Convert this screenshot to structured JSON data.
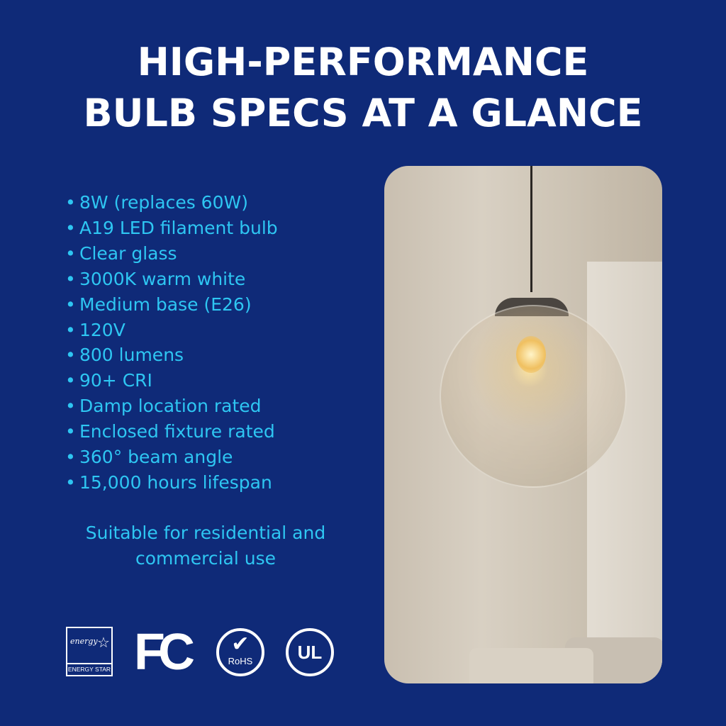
{
  "title": {
    "line1": "HIGH-PERFORMANCE",
    "line2": "BULB SPECS AT A GLANCE"
  },
  "specs": [
    "8W (replaces 60W)",
    "A19 LED filament bulb",
    "Clear glass",
    "3000K warm white",
    "Medium base (E26)",
    "120V",
    "800 lumens",
    "90+ CRI",
    "Damp location rated",
    "Enclosed fixture rated",
    "360° beam angle",
    "15,000 hours lifespan"
  ],
  "bullet": "•",
  "tagline": "Suitable for residential and commercial use",
  "certifications": {
    "energy_star": {
      "script": "energy",
      "label": "ENERGY STAR"
    },
    "fcc": "FC",
    "rohs": "RoHS",
    "ul": "UL"
  },
  "colors": {
    "background": "#0f2a78",
    "accent_text": "#2ec6f2",
    "title": "#ffffff"
  }
}
